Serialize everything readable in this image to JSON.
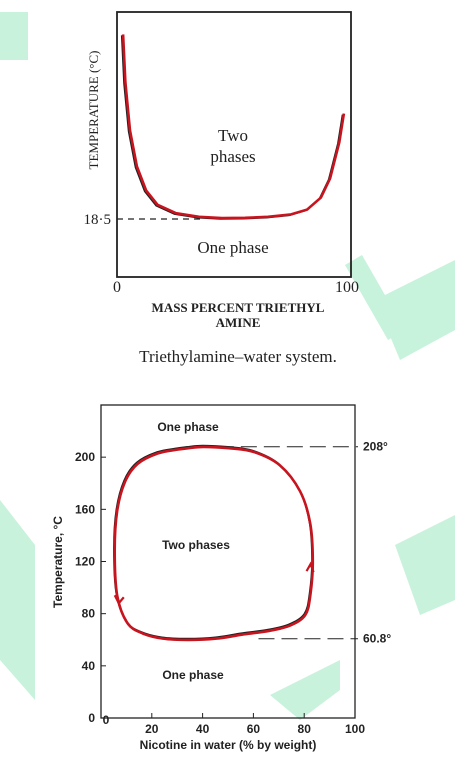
{
  "colors": {
    "ink": "#222222",
    "accent_curve": "#c8141e",
    "watermark": "#9be8c0"
  },
  "chart_data": [
    {
      "type": "line",
      "title": "",
      "caption": "Triethylamine–water system.",
      "xlabel": "MASS PERCENT TRIETHYL AMINE",
      "ylabel": "TEMPERATURE (°C)",
      "xlim": [
        0,
        100
      ],
      "x_ticks": [
        "0",
        "100"
      ],
      "y_ticks": [
        "18·5"
      ],
      "grid": false,
      "region_labels": [
        "Two phases",
        "One phase"
      ],
      "reference_line": {
        "label": "18·5",
        "value": 18.5
      },
      "series": [
        {
          "x": [
            2,
            3,
            5,
            8,
            12,
            17,
            25,
            35,
            45,
            55,
            65,
            75,
            82,
            88,
            92,
            96,
            98
          ],
          "y": [
            95,
            75,
            55,
            40,
            30,
            24,
            20.5,
            19,
            18.5,
            18.6,
            19,
            20,
            22,
            27,
            35,
            50,
            62
          ]
        }
      ]
    },
    {
      "type": "line",
      "title": "",
      "xlabel": "Nicotine in water (% by weight)",
      "ylabel": "Temperature, °C",
      "xlim": [
        0,
        100
      ],
      "ylim": [
        0,
        240
      ],
      "x_ticks": [
        0,
        20,
        40,
        60,
        80,
        100
      ],
      "y_ticks": [
        0,
        40,
        80,
        120,
        160,
        200
      ],
      "grid": false,
      "region_labels": [
        "One phase",
        "Two phases",
        "One phase"
      ],
      "reference_lines": [
        {
          "label": "208°",
          "value": 208
        },
        {
          "label": "60.8°",
          "value": 60.8
        }
      ],
      "series": [
        {
          "x": [
            34,
            40,
            50,
            60,
            70,
            78,
            82,
            83,
            82,
            80,
            74,
            66,
            55,
            45,
            34,
            24,
            16,
            10,
            6,
            5,
            6,
            9,
            14,
            22,
            30,
            34
          ],
          "y": [
            208,
            209,
            208,
            205,
            195,
            175,
            150,
            120,
            95,
            80,
            72,
            68,
            65,
            62,
            61,
            62,
            66,
            74,
            95,
            130,
            160,
            182,
            196,
            204,
            207,
            208
          ]
        }
      ]
    }
  ]
}
